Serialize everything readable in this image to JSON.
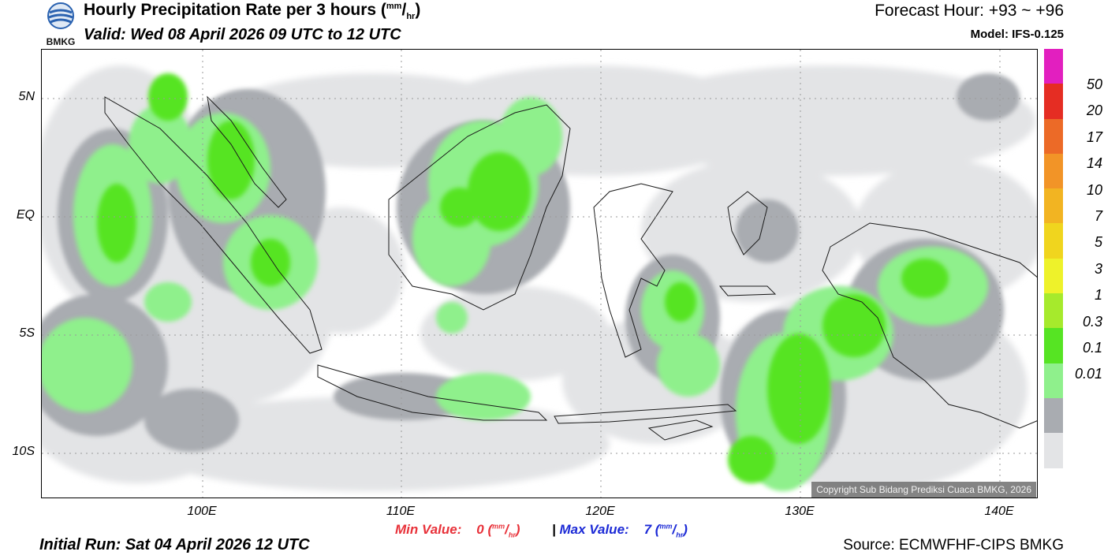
{
  "logo": {
    "text": "BMKG"
  },
  "header": {
    "title": "Hourly Precipitation Rate per 3 hours (",
    "title_unit_top": "mm",
    "title_unit_bottom": "hr",
    "title_close": ")",
    "valid": "Valid: Wed 08 April 2026 09 UTC to 12 UTC",
    "forecast_hour": "Forecast Hour: +93 ~ +96",
    "model": "Model: IFS-0.125"
  },
  "map": {
    "lat_labels": [
      "5N",
      "EQ",
      "5S",
      "10S"
    ],
    "lon_labels": [
      "100E",
      "110E",
      "120E",
      "130E",
      "140E"
    ],
    "copyright": "Copyright Sub Bidang Prediksi Cuaca BMKG, 2026"
  },
  "colorbar": {
    "labels": [
      "50",
      "20",
      "17",
      "14",
      "10",
      "7",
      "5",
      "3",
      "1",
      "0.3",
      "0.1",
      "0.01"
    ],
    "colors": [
      "#e21fbf",
      "#e52d23",
      "#ec6a27",
      "#f29427",
      "#f2b422",
      "#f0d51e",
      "#eef22a",
      "#a6ea2c",
      "#56e423",
      "#8ff08c",
      "#a9acb1",
      "#e3e4e6"
    ]
  },
  "footer": {
    "min_label": "Min Value:",
    "min_value": "0",
    "max_label": "Max Value:",
    "max_value": "7",
    "unit_top": "mm",
    "unit_bottom": "hr",
    "separator": "|",
    "initial_run": "Initial Run: Sat 04 April 2026 12 UTC",
    "source": "Source: ECMWFHF-CIPS BMKG"
  }
}
